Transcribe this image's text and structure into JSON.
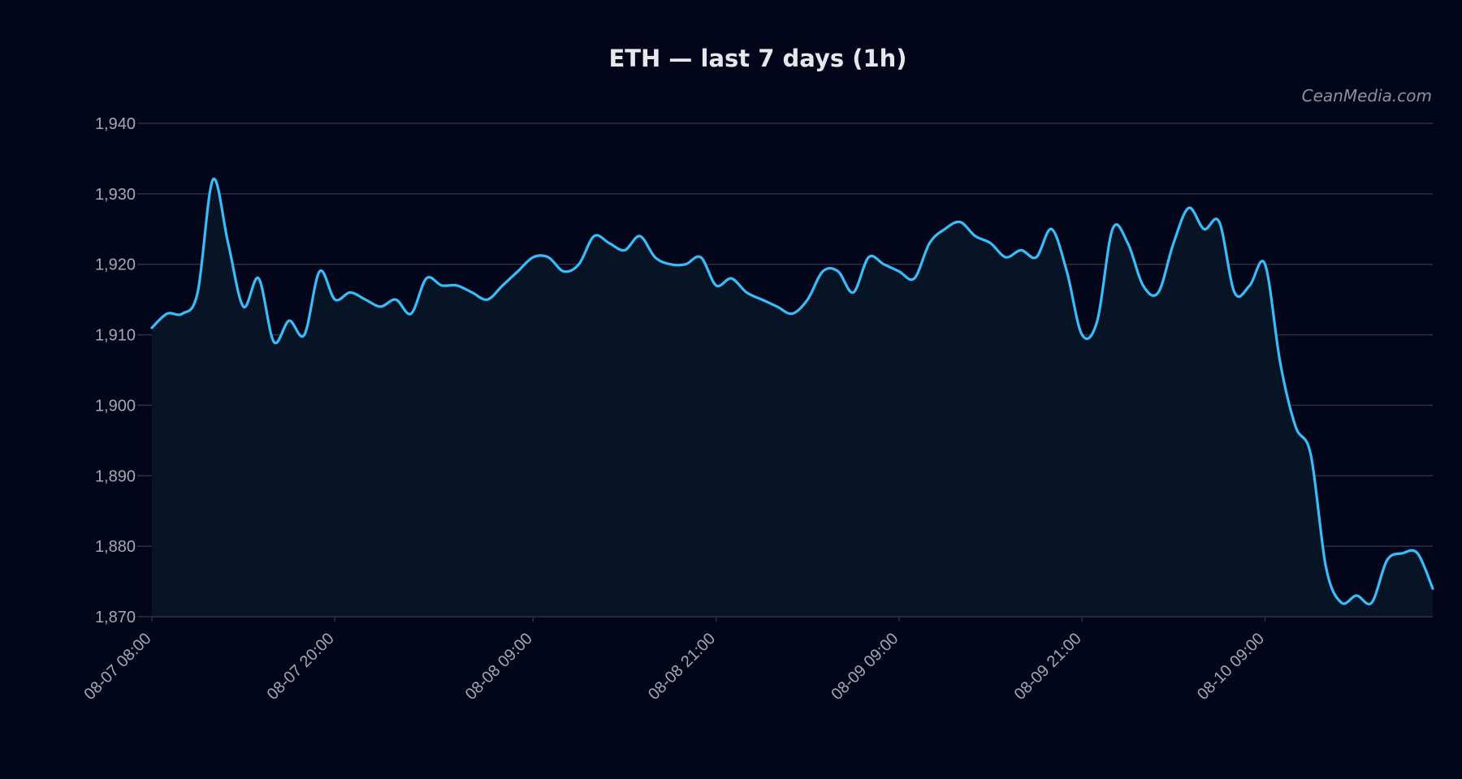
{
  "title": "ETH — last 7 days (1h)",
  "watermark": "CeanMedia.com",
  "colors": {
    "background": "#03061a",
    "line": "#38bdf8",
    "area": "#071426",
    "grid": "#2b3140",
    "text": "#a3a8b3"
  },
  "chart_data": {
    "type": "area",
    "title": "ETH — last 7 days (1h)",
    "xlabel": "",
    "ylabel": "",
    "ylim": [
      1870,
      1940
    ],
    "yticks": [
      1870,
      1880,
      1890,
      1900,
      1910,
      1920,
      1930,
      1940
    ],
    "ytick_labels": [
      "1,870",
      "1,880",
      "1,890",
      "1,900",
      "1,910",
      "1,920",
      "1,930",
      "1,940"
    ],
    "xticks": [
      "08-07 08:00",
      "08-07 20:00",
      "08-08 09:00",
      "08-08 21:00",
      "08-09 09:00",
      "08-09 21:00",
      "08-10 09:00"
    ],
    "grid": true,
    "series": [
      {
        "x": [
          "08-07 08:00",
          "08-07 09:00",
          "08-07 10:00",
          "08-07 11:00",
          "08-07 12:00",
          "08-07 13:00",
          "08-07 14:00",
          "08-07 15:00",
          "08-07 16:00",
          "08-07 17:00",
          "08-07 18:00",
          "08-07 19:00",
          "08-07 20:00",
          "08-07 21:00",
          "08-07 22:00",
          "08-07 23:00",
          "08-08 00:00",
          "08-08 01:00",
          "08-08 02:00",
          "08-08 03:00",
          "08-08 04:00",
          "08-08 05:00",
          "08-08 06:00",
          "08-08 07:00",
          "08-08 08:00",
          "08-08 09:00",
          "08-08 10:00",
          "08-08 11:00",
          "08-08 12:00",
          "08-08 13:00",
          "08-08 14:00",
          "08-08 15:00",
          "08-08 16:00",
          "08-08 17:00",
          "08-08 18:00",
          "08-08 19:00",
          "08-08 20:00",
          "08-08 21:00",
          "08-08 22:00",
          "08-08 23:00",
          "08-09 00:00",
          "08-09 01:00",
          "08-09 02:00",
          "08-09 03:00",
          "08-09 04:00",
          "08-09 05:00",
          "08-09 06:00",
          "08-09 07:00",
          "08-09 08:00",
          "08-09 09:00",
          "08-09 10:00",
          "08-09 11:00",
          "08-09 12:00",
          "08-09 13:00",
          "08-09 14:00",
          "08-09 15:00",
          "08-09 16:00",
          "08-09 17:00",
          "08-09 18:00",
          "08-09 19:00",
          "08-09 20:00",
          "08-09 21:00",
          "08-09 22:00",
          "08-09 23:00",
          "08-10 00:00",
          "08-10 01:00",
          "08-10 02:00",
          "08-10 03:00",
          "08-10 04:00",
          "08-10 05:00",
          "08-10 06:00",
          "08-10 07:00",
          "08-10 08:00",
          "08-10 09:00",
          "08-10 10:00",
          "08-10 11:00",
          "08-10 12:00",
          "08-10 13:00",
          "08-10 14:00",
          "08-10 15:00",
          "08-10 16:00",
          "08-10 17:00",
          "08-10 18:00",
          "08-10 19:00",
          "08-10 20:00"
        ],
        "values": [
          1911,
          1913,
          1913,
          1916,
          1932,
          1923,
          1914,
          1918,
          1909,
          1912,
          1910,
          1919,
          1915,
          1916,
          1915,
          1914,
          1915,
          1913,
          1918,
          1917,
          1917,
          1916,
          1915,
          1917,
          1919,
          1921,
          1921,
          1919,
          1920,
          1924,
          1923,
          1922,
          1924,
          1921,
          1920,
          1920,
          1921,
          1917,
          1918,
          1916,
          1915,
          1914,
          1913,
          1915,
          1919,
          1919,
          1916,
          1921,
          1920,
          1919,
          1918,
          1923,
          1925,
          1926,
          1924,
          1923,
          1921,
          1922,
          1921,
          1925,
          1919,
          1910,
          1912,
          1925,
          1923,
          1917,
          1916,
          1923,
          1928,
          1925,
          1926,
          1916,
          1917,
          1920,
          1906,
          1897,
          1893,
          1877,
          1872,
          1873,
          1872,
          1878,
          1879,
          1879,
          1874
        ]
      }
    ]
  }
}
